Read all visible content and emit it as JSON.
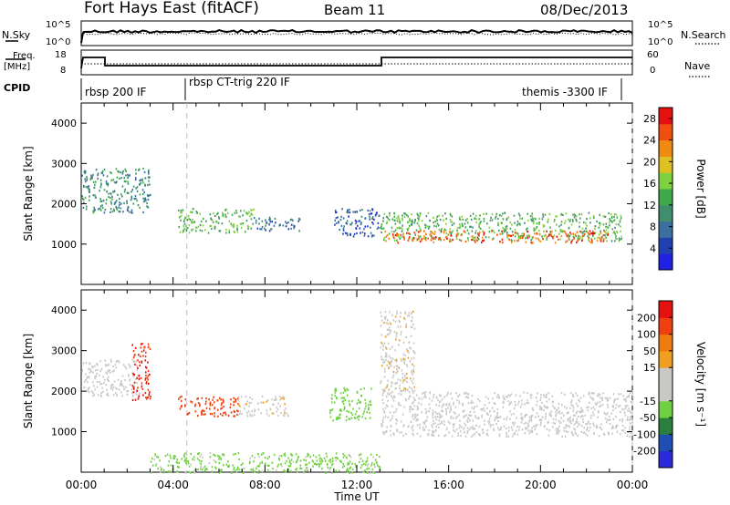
{
  "header": {
    "title": "Fort Hays East (fitACF)",
    "beam": "Beam 11",
    "date": "08/Dec/2013"
  },
  "summary_panel": {
    "nsky_label": "N.Sky",
    "nsky_ticks": [
      "10^5",
      "10^0"
    ],
    "nsearch_label": "N.Search",
    "nsearch_ticks": [
      "10^5",
      "10^0"
    ],
    "freq_label_1": "Freq.",
    "freq_label_2": "[MHz]",
    "freq_ticks": [
      "18",
      "8"
    ],
    "nave_label": "Nave",
    "nave_ticks": [
      "60",
      "0"
    ],
    "cpid_label": "CPID",
    "cpid_segments": [
      "rbsp 200 IF",
      "rbsp CT-trig 220 IF",
      "themis -3300 IF"
    ]
  },
  "colors": {
    "power_scale": [
      "#2121e6",
      "#1f3fb3",
      "#3a6f9f",
      "#3f8f6f",
      "#3faa4a",
      "#7fd13f",
      "#e0c020",
      "#f08a10",
      "#f04f10",
      "#e61010"
    ],
    "velocity_scale": [
      "#2a2ad8",
      "#1f4fb5",
      "#2a7f3f",
      "#6fd13f",
      "#c8c8c4",
      "#c8c8c4",
      "#f0a020",
      "#f07a10",
      "#f04010",
      "#e61010"
    ],
    "dashed_line": "#c0c0c0"
  },
  "chart_data": [
    {
      "type": "heatmap",
      "title": "",
      "xlabel": "Time UT",
      "ylabel": "Slant Range [km]",
      "xlim": [
        "00:00",
        "24:00"
      ],
      "ylim": [
        0,
        4500
      ],
      "yticks": [
        "1000",
        "2000",
        "3000",
        "4000"
      ],
      "xticks": [
        "00:00",
        "04:00",
        "08:00",
        "12:00",
        "16:00",
        "20:00",
        "00:00"
      ],
      "colorbar_label": "Power [dB]",
      "colorbar_ticks": [
        "4",
        "8",
        "12",
        "16",
        "20",
        "24",
        "28"
      ],
      "colorbar_range": [
        0,
        30
      ],
      "vertical_dashed_hours": [
        4.6,
        24.0
      ],
      "echo_regions": [
        {
          "t0": 0.0,
          "t1": 3.0,
          "r0": 1800,
          "r1": 2900,
          "power": 10
        },
        {
          "t0": 4.2,
          "t1": 7.5,
          "r0": 1300,
          "r1": 1900,
          "power": 14
        },
        {
          "t0": 7.5,
          "t1": 9.5,
          "r0": 1350,
          "r1": 1700,
          "power": 8
        },
        {
          "t0": 11.0,
          "t1": 13.0,
          "r0": 1200,
          "r1": 1900,
          "power": 6
        },
        {
          "t0": 13.0,
          "t1": 23.5,
          "r0": 1100,
          "r1": 1800,
          "power": 14
        },
        {
          "t0": 13.2,
          "t1": 23.0,
          "r0": 1050,
          "r1": 1350,
          "power": 25
        }
      ]
    },
    {
      "type": "heatmap",
      "title": "",
      "xlabel": "Time UT",
      "ylabel": "Slant Range [km]",
      "xlim": [
        "00:00",
        "24:00"
      ],
      "ylim": [
        0,
        4500
      ],
      "yticks": [
        "1000",
        "2000",
        "3000",
        "4000"
      ],
      "xticks": [
        "00:00",
        "04:00",
        "08:00",
        "12:00",
        "16:00",
        "20:00",
        "00:00"
      ],
      "colorbar_label": "Velocity [m s⁻¹]",
      "colorbar_ticks": [
        "-200",
        "-100",
        "-50",
        "-15",
        "15",
        "50",
        "100",
        "200"
      ],
      "colorbar_range": [
        -250,
        250
      ],
      "vertical_dashed_hours": [
        4.6,
        24.0
      ],
      "echo_regions": [
        {
          "t0": 0.0,
          "t1": 2.5,
          "r0": 1900,
          "r1": 2800,
          "velocity": 0
        },
        {
          "t0": 2.2,
          "t1": 3.0,
          "r0": 1800,
          "r1": 3200,
          "velocity": 200
        },
        {
          "t0": 4.2,
          "t1": 6.8,
          "r0": 1400,
          "r1": 1900,
          "velocity": 180
        },
        {
          "t0": 6.8,
          "t1": 9.0,
          "r0": 1400,
          "r1": 1900,
          "velocity": 40
        },
        {
          "t0": 10.8,
          "t1": 12.6,
          "r0": 1300,
          "r1": 2100,
          "velocity": -80
        },
        {
          "t0": 13.0,
          "t1": 24.0,
          "r0": 900,
          "r1": 2000,
          "velocity": 0
        },
        {
          "t0": 13.0,
          "t1": 14.5,
          "r0": 2000,
          "r1": 4000,
          "velocity": 40
        },
        {
          "t0": 3.0,
          "t1": 13.0,
          "r0": 0,
          "r1": 500,
          "velocity": -60
        }
      ]
    }
  ]
}
